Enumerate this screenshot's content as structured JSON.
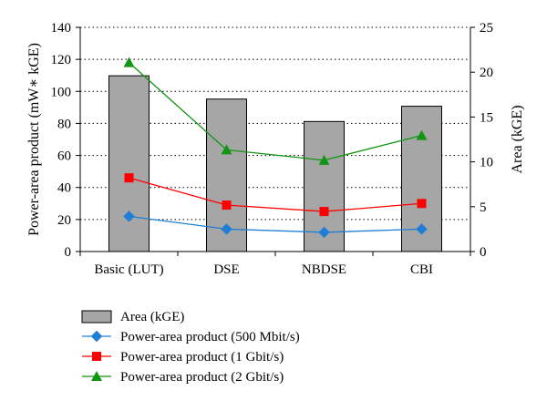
{
  "chart_data": {
    "type": "bar",
    "categories": [
      "Basic (LUT)",
      "DSE",
      "NBDSE",
      "CBI"
    ],
    "ylabel_left": "Power-area product (mW∗ kGE)",
    "ylabel_right": "Area (kGE)",
    "ylim_left": [
      0,
      140
    ],
    "ylim_right": [
      0,
      25
    ],
    "yticks_left": [
      "0",
      "20",
      "40",
      "60",
      "80",
      "100",
      "120",
      "140"
    ],
    "yticks_right": [
      "0",
      "5",
      "10",
      "15",
      "20",
      "25"
    ],
    "grid": "horizontal dotted",
    "legend_position": "bottom",
    "series": [
      {
        "name": "Area (kGE)",
        "type": "bar",
        "axis": "right",
        "color": "#a6a6a6",
        "values": [
          19.6,
          17.0,
          14.5,
          16.2
        ]
      },
      {
        "name": "Power-area product (500 Mbit/s)",
        "type": "line",
        "axis": "left",
        "color": "#1f7fd6",
        "marker": "diamond",
        "values": [
          22,
          14,
          12,
          14
        ]
      },
      {
        "name": "Power-area product (1 Gbit/s)",
        "type": "line",
        "axis": "left",
        "color": "#ff0000",
        "marker": "square",
        "values": [
          46,
          29,
          25,
          30
        ]
      },
      {
        "name": "Power-area product (2 Gbit/s)",
        "type": "line",
        "axis": "left",
        "color": "#129512",
        "marker": "triangle",
        "values": [
          118,
          63.5,
          57,
          72.5
        ]
      }
    ]
  }
}
